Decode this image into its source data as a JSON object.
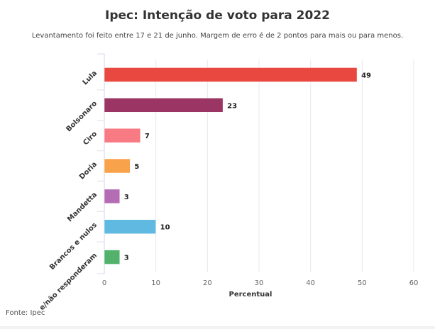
{
  "chart_data": {
    "type": "bar",
    "orientation": "horizontal",
    "title": "Ipec: Intenção de voto para 2022",
    "subtitle": "Levantamento foi feito entre 17 e 21 de junho. Margem de erro é de 2 pontos para mais ou para menos.",
    "categories": [
      "Lula",
      "Bolsonaro",
      "Ciro",
      "Doria",
      "Mandetta",
      "Brancos e nulos",
      "e/não responderam"
    ],
    "values": [
      49,
      23,
      7,
      5,
      3,
      10,
      3
    ],
    "colors": [
      "#e8483f",
      "#9b3563",
      "#f87a82",
      "#f9a24c",
      "#b46db4",
      "#60b9e0",
      "#52b26b"
    ],
    "xlabel": "Percentual",
    "ylabel": "",
    "xlim": [
      0,
      60
    ],
    "xticks": [
      "0",
      "10",
      "20",
      "30",
      "40",
      "50",
      "60"
    ],
    "grid": true,
    "source": "Fonte: Ipec"
  }
}
